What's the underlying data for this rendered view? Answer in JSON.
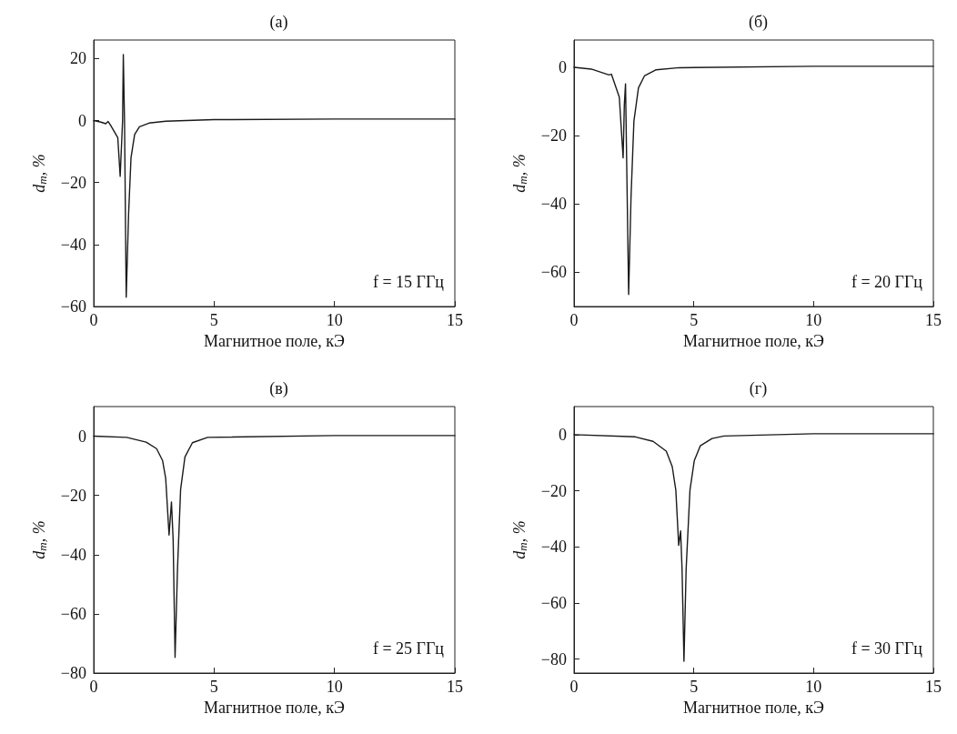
{
  "chart_data": [
    {
      "type": "line",
      "title": "(а)",
      "xlabel": "Магнитное поле, кЭ",
      "ylabel": "d$_{m}$, %",
      "annotations": [
        "f = 15 ГГц"
      ],
      "xlim": [
        0,
        15
      ],
      "xticks": [
        0,
        5,
        10,
        15
      ],
      "ylim": [
        -60,
        26
      ],
      "yticks": [
        -60,
        -40,
        -20,
        0,
        20
      ],
      "marker": "none",
      "line_style": "solid",
      "series": [
        {
          "color": "#1a1a1a",
          "x": [
            0,
            0.3,
            0.5,
            0.6,
            0.7,
            1.0,
            1.1,
            1.2,
            1.23,
            1.28,
            1.35,
            1.45,
            1.55,
            1.7,
            1.9,
            2.3,
            3,
            5,
            10,
            15
          ],
          "values": [
            0,
            -0.5,
            -1,
            -0.3,
            -1.5,
            -5.5,
            -18,
            0,
            21.3,
            0,
            -57,
            -30,
            -12,
            -4.5,
            -2,
            -0.8,
            -0.2,
            0.3,
            0.5,
            0.5
          ]
        }
      ]
    },
    {
      "type": "line",
      "title": "(б)",
      "xlabel": "Магнитное поле, кЭ",
      "ylabel": "d$_{m}$, %",
      "annotations": [
        "f = 20 ГГц"
      ],
      "xlim": [
        0,
        15
      ],
      "xticks": [
        0,
        5,
        10,
        15
      ],
      "ylim": [
        -70,
        8
      ],
      "yticks": [
        -60,
        -40,
        -20,
        0
      ],
      "marker": "none",
      "line_style": "solid",
      "series": [
        {
          "color": "#1a1a1a",
          "x": [
            0,
            0.72,
            1.46,
            1.56,
            1.89,
            2.05,
            2.1,
            2.15,
            2.22,
            2.28,
            2.38,
            2.5,
            2.69,
            2.94,
            3.43,
            4.4,
            10,
            15
          ],
          "values": [
            0,
            -0.5,
            -2.2,
            -2,
            -8.7,
            -26.5,
            -11,
            -4.8,
            -38,
            -66.5,
            -38,
            -15.8,
            -6,
            -2.5,
            -0.7,
            -0.1,
            0.3,
            0.3
          ]
        }
      ]
    },
    {
      "type": "line",
      "title": "(в)",
      "xlabel": "Магнитное поле, кЭ",
      "ylabel": "d$_{m}$, %",
      "annotations": [
        "f = 25 ГГц"
      ],
      "xlim": [
        0,
        15
      ],
      "xticks": [
        0,
        5,
        10,
        15
      ],
      "ylim": [
        -80,
        10
      ],
      "yticks": [
        -80,
        -60,
        -40,
        -20,
        0
      ],
      "marker": "none",
      "line_style": "solid",
      "series": [
        {
          "color": "#1a1a1a",
          "x": [
            0,
            1.37,
            2.18,
            2.61,
            2.86,
            2.99,
            3.13,
            3.23,
            3.3,
            3.38,
            3.48,
            3.61,
            3.79,
            4.1,
            4.73,
            10,
            15
          ],
          "values": [
            0,
            -0.4,
            -2,
            -4.2,
            -8.2,
            -14.2,
            -33.4,
            -22.2,
            -35,
            -74.7,
            -45,
            -18,
            -7,
            -2.2,
            -0.4,
            0.2,
            0.2
          ]
        }
      ]
    },
    {
      "type": "line",
      "title": "(г)",
      "xlabel": "Магнитное поле, кЭ",
      "ylabel": "d$_{m}$, %",
      "annotations": [
        "f = 30 ГГц"
      ],
      "xlim": [
        0,
        15
      ],
      "xticks": [
        0,
        5,
        10,
        15
      ],
      "ylim": [
        -85,
        10
      ],
      "yticks": [
        -80,
        -60,
        -40,
        -20,
        0
      ],
      "marker": "none",
      "line_style": "solid",
      "series": [
        {
          "color": "#1a1a1a",
          "x": [
            0,
            2.56,
            3.3,
            3.85,
            4.1,
            4.25,
            4.37,
            4.45,
            4.51,
            4.59,
            4.68,
            4.84,
            5.02,
            5.27,
            5.76,
            6.26,
            10,
            15
          ],
          "values": [
            0,
            -0.8,
            -2.4,
            -5.9,
            -11.4,
            -19.8,
            -39.5,
            -34.3,
            -48,
            -80.8,
            -48,
            -19.8,
            -9.3,
            -4,
            -1.4,
            -0.5,
            0.3,
            0.3
          ]
        }
      ]
    }
  ]
}
